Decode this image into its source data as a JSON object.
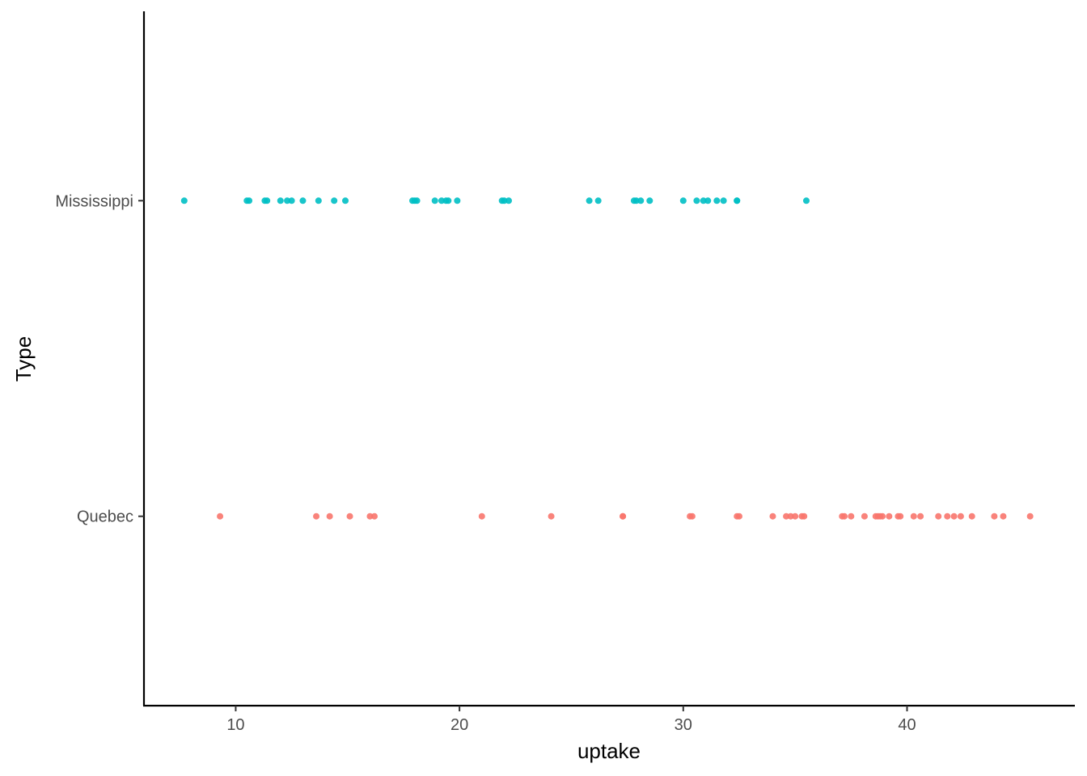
{
  "chart_data": {
    "type": "scatter",
    "title": "",
    "xlabel": "uptake",
    "ylabel": "Type",
    "xlim": [
      5.9,
      47.5
    ],
    "x_ticks": [
      10,
      20,
      30,
      40
    ],
    "x_tick_labels": [
      "10",
      "20",
      "30",
      "40"
    ],
    "y_categories": [
      "Quebec",
      "Mississippi"
    ],
    "grid": false,
    "legend": "none",
    "series": [
      {
        "category": "Quebec",
        "color": "#F8766D",
        "x": [
          9.3,
          13.6,
          14.2,
          15.1,
          16.0,
          16.2,
          21.0,
          24.1,
          27.3,
          27.3,
          30.3,
          30.4,
          32.4,
          32.5,
          34.0,
          34.6,
          34.8,
          35.0,
          35.3,
          35.4,
          37.1,
          37.2,
          37.5,
          38.1,
          38.6,
          38.7,
          38.8,
          38.9,
          39.2,
          39.6,
          39.7,
          40.3,
          40.6,
          41.4,
          41.8,
          42.1,
          42.4,
          42.9,
          43.9,
          44.3,
          45.5
        ]
      },
      {
        "category": "Mississippi",
        "color": "#00BFC4",
        "x": [
          7.7,
          10.5,
          10.6,
          11.3,
          11.4,
          12.0,
          12.3,
          12.5,
          13.0,
          13.7,
          14.4,
          14.9,
          17.9,
          18.0,
          18.1,
          18.9,
          19.2,
          19.4,
          19.5,
          19.9,
          21.9,
          22.0,
          22.2,
          25.8,
          26.2,
          27.8,
          27.9,
          28.1,
          28.5,
          30.0,
          30.6,
          30.9,
          31.1,
          31.5,
          31.8,
          32.4,
          32.4,
          35.5
        ]
      }
    ]
  }
}
